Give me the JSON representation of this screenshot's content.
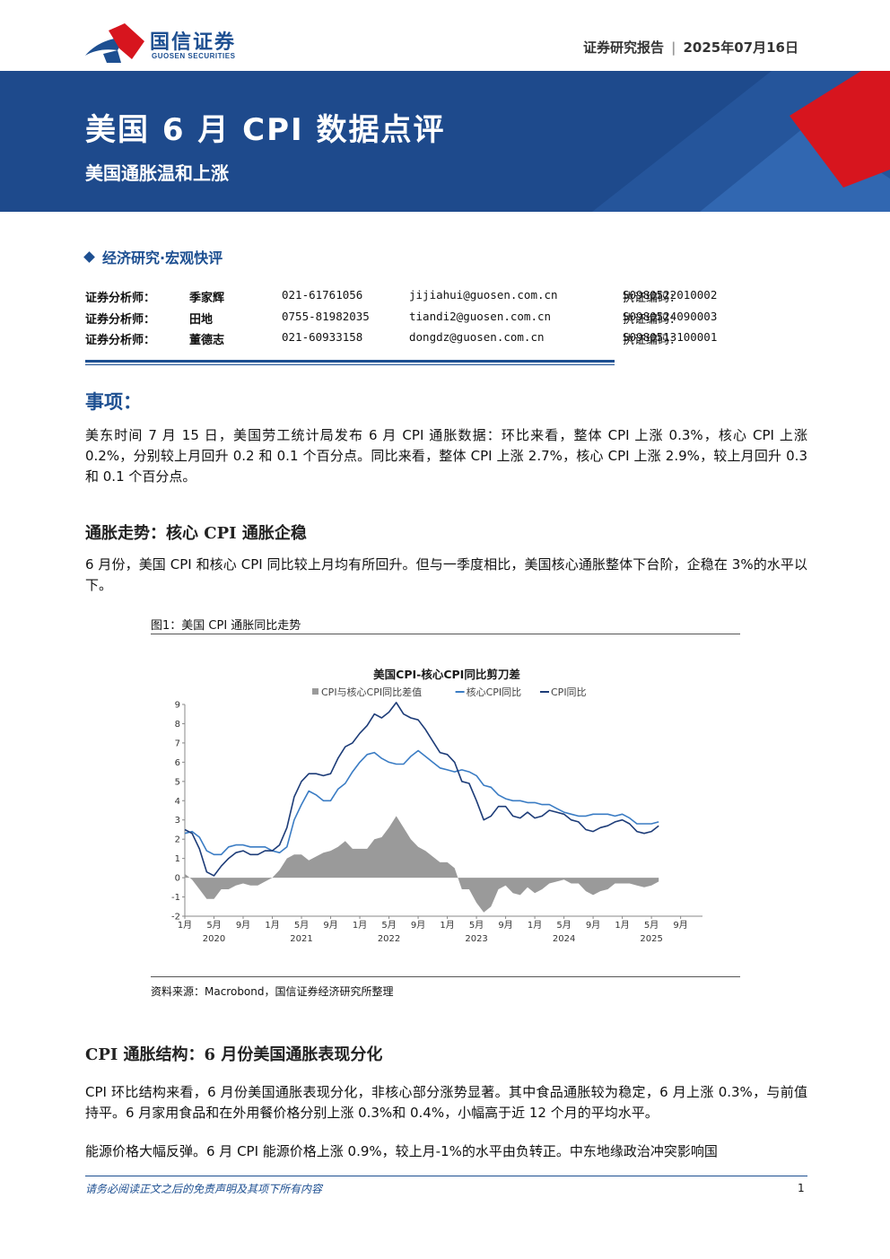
{
  "header": {
    "logo_cn": "国信证券",
    "logo_en": "GUOSEN SECURITIES",
    "report_type": "证券研究报告",
    "date": "2025年07月16日"
  },
  "banner": {
    "title": "美国 6 月 CPI 数据点评",
    "subtitle": "美国通胀温和上涨"
  },
  "category": "经济研究·宏观快评",
  "analysts": [
    {
      "role": "证券分析师：",
      "name": "季家辉",
      "phone": "021-61761056",
      "email": "jijiahui@guosen.com.cn",
      "cert_label": "执证编码：",
      "cert": "S0980522010002"
    },
    {
      "role": "证券分析师：",
      "name": "田地",
      "phone": "0755-81982035",
      "email": "tiandi2@guosen.com.cn",
      "cert_label": "执证编码：",
      "cert": "S0980524090003"
    },
    {
      "role": "证券分析师：",
      "name": "董德志",
      "phone": "021-60933158",
      "email": "dongdz@guosen.com.cn",
      "cert_label": "执证编码：",
      "cert": "S0980513100001"
    }
  ],
  "event": {
    "heading": "事项：",
    "body": "美东时间 7 月 15 日，美国劳工统计局发布 6 月 CPI 通胀数据：环比来看，整体 CPI 上涨 0.3%，核心 CPI 上涨 0.2%，分别较上月回升 0.2 和 0.1 个百分点。同比来看，整体 CPI 上涨 2.7%，核心 CPI 上涨 2.9%，较上月回升 0.3 和 0.1 个百分点。"
  },
  "section1": {
    "heading": "通胀走势：核心 CPI 通胀企稳",
    "body": "6 月份，美国 CPI 和核心 CPI 同比较上月均有所回升。但与一季度相比，美国核心通胀整体下台阶，企稳在 3%的水平以下。"
  },
  "figure": {
    "caption": "图1：美国 CPI 通胀同比走势",
    "source": "资料来源：Macrobond，国信证券经济研究所整理"
  },
  "chart_data": {
    "type": "line",
    "title": "美国CPI-核心CPI同比剪刀差",
    "legend": [
      "CPI与核心CPI同比差值",
      "核心CPI同比",
      "CPI同比"
    ],
    "legend_placement": "top",
    "ylim": [
      -2,
      9
    ],
    "yticks": [
      "-2",
      "-1",
      "0",
      "1",
      "2",
      "3",
      "4",
      "5",
      "6",
      "7",
      "8",
      "9"
    ],
    "xticks": [
      "1月",
      "5月",
      "9月",
      "1月",
      "5月",
      "9月",
      "1月",
      "5月",
      "9月",
      "1月",
      "5月",
      "9月",
      "1月",
      "5月",
      "9月",
      "1月",
      "5月",
      "9月"
    ],
    "years": [
      "2020",
      "2021",
      "2022",
      "2023",
      "2024",
      "2025"
    ],
    "x_start": "2020-01",
    "colors": {
      "cpi": "#1d3c78",
      "core": "#3a7cc4",
      "diff": "#9a9a9a"
    },
    "series": [
      {
        "name": "CPI同比",
        "values": [
          2.5,
          2.3,
          1.5,
          0.3,
          0.1,
          0.6,
          1.0,
          1.3,
          1.4,
          1.2,
          1.2,
          1.4,
          1.4,
          1.7,
          2.6,
          4.2,
          5.0,
          5.4,
          5.4,
          5.3,
          5.4,
          6.2,
          6.8,
          7.0,
          7.5,
          7.9,
          8.5,
          8.3,
          8.6,
          9.1,
          8.5,
          8.3,
          8.2,
          7.7,
          7.1,
          6.5,
          6.4,
          6.0,
          5.0,
          4.9,
          4.0,
          3.0,
          3.2,
          3.7,
          3.7,
          3.2,
          3.1,
          3.4,
          3.1,
          3.2,
          3.5,
          3.4,
          3.3,
          3.0,
          2.9,
          2.5,
          2.4,
          2.6,
          2.7,
          2.9,
          3.0,
          2.8,
          2.4,
          2.3,
          2.4,
          2.7
        ]
      },
      {
        "name": "核心CPI同比",
        "values": [
          2.3,
          2.4,
          2.1,
          1.4,
          1.2,
          1.2,
          1.6,
          1.7,
          1.7,
          1.6,
          1.6,
          1.6,
          1.4,
          1.3,
          1.6,
          3.0,
          3.8,
          4.5,
          4.3,
          4.0,
          4.0,
          4.6,
          4.9,
          5.5,
          6.0,
          6.4,
          6.5,
          6.2,
          6.0,
          5.9,
          5.9,
          6.3,
          6.6,
          6.3,
          6.0,
          5.7,
          5.6,
          5.5,
          5.6,
          5.5,
          5.3,
          4.8,
          4.7,
          4.3,
          4.1,
          4.0,
          4.0,
          3.9,
          3.9,
          3.8,
          3.8,
          3.6,
          3.4,
          3.3,
          3.2,
          3.2,
          3.3,
          3.3,
          3.3,
          3.2,
          3.3,
          3.1,
          2.8,
          2.8,
          2.8,
          2.9
        ]
      },
      {
        "name": "CPI与核心CPI同比差值",
        "values": [
          0.2,
          -0.1,
          -0.6,
          -1.1,
          -1.1,
          -0.6,
          -0.6,
          -0.4,
          -0.3,
          -0.4,
          -0.4,
          -0.2,
          0.0,
          0.4,
          1.0,
          1.2,
          1.2,
          0.9,
          1.1,
          1.3,
          1.4,
          1.6,
          1.9,
          1.5,
          1.5,
          1.5,
          2.0,
          2.1,
          2.6,
          3.2,
          2.6,
          2.0,
          1.6,
          1.4,
          1.1,
          0.8,
          0.8,
          0.5,
          -0.6,
          -0.6,
          -1.3,
          -1.8,
          -1.5,
          -0.6,
          -0.4,
          -0.8,
          -0.9,
          -0.5,
          -0.8,
          -0.6,
          -0.3,
          -0.2,
          -0.1,
          -0.3,
          -0.3,
          -0.7,
          -0.9,
          -0.7,
          -0.6,
          -0.3,
          -0.3,
          -0.3,
          -0.4,
          -0.5,
          -0.4,
          -0.2
        ]
      }
    ]
  },
  "section2": {
    "heading": "CPI 通胀结构：6 月份美国通胀表现分化",
    "body1": "CPI 环比结构来看，6 月份美国通胀表现分化，非核心部分涨势显著。其中食品通胀较为稳定，6 月上涨 0.3%，与前值持平。6 月家用食品和在外用餐价格分别上涨 0.3%和 0.4%，小幅高于近 12 个月的平均水平。",
    "body2": "能源价格大幅反弹。6 月 CPI 能源价格上涨 0.9%，较上月-1%的水平由负转正。中东地缘政治冲突影响国"
  },
  "footer": {
    "disclaimer": "请务必阅读正文之后的免责声明及其项下所有内容",
    "page": "1"
  }
}
